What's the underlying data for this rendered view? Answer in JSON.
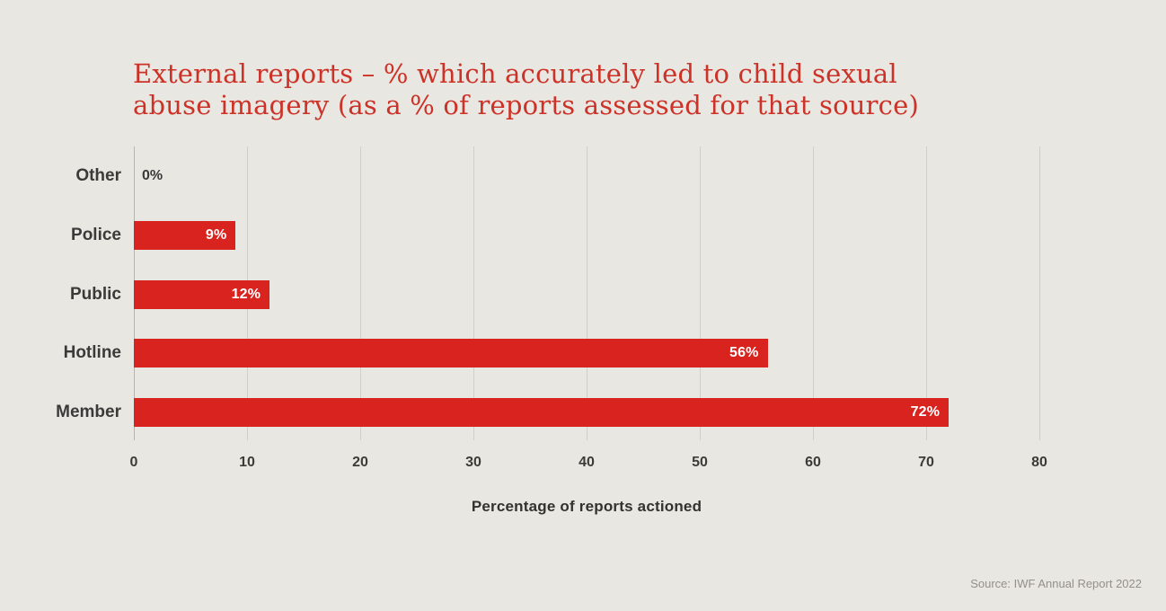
{
  "page": {
    "background_color": "#e9e7e2"
  },
  "title": {
    "line1": "External reports – % which accurately led to child sexual",
    "line2": "abuse imagery (as a % of reports assessed for that source)",
    "color": "#cc3227"
  },
  "chart_data": {
    "type": "bar",
    "orientation": "horizontal",
    "categories": [
      "Other",
      "Police",
      "Public",
      "Hotline",
      "Member"
    ],
    "values": [
      0,
      9,
      12,
      56,
      72
    ],
    "value_labels": [
      "0%",
      "9%",
      "12%",
      "56%",
      "72%"
    ],
    "title": "External reports – % which accurately led to child sexual abuse imagery (as a % of reports assessed for that source)",
    "xlabel": "Percentage of reports actioned",
    "ylabel": "",
    "x_ticks": [
      0,
      10,
      20,
      30,
      40,
      50,
      60,
      70,
      80
    ],
    "xlim": [
      0,
      80
    ],
    "bar_color": "#d8231f",
    "grid": true,
    "legend": false
  },
  "source": {
    "text": "Source: IWF Annual Report 2022"
  }
}
